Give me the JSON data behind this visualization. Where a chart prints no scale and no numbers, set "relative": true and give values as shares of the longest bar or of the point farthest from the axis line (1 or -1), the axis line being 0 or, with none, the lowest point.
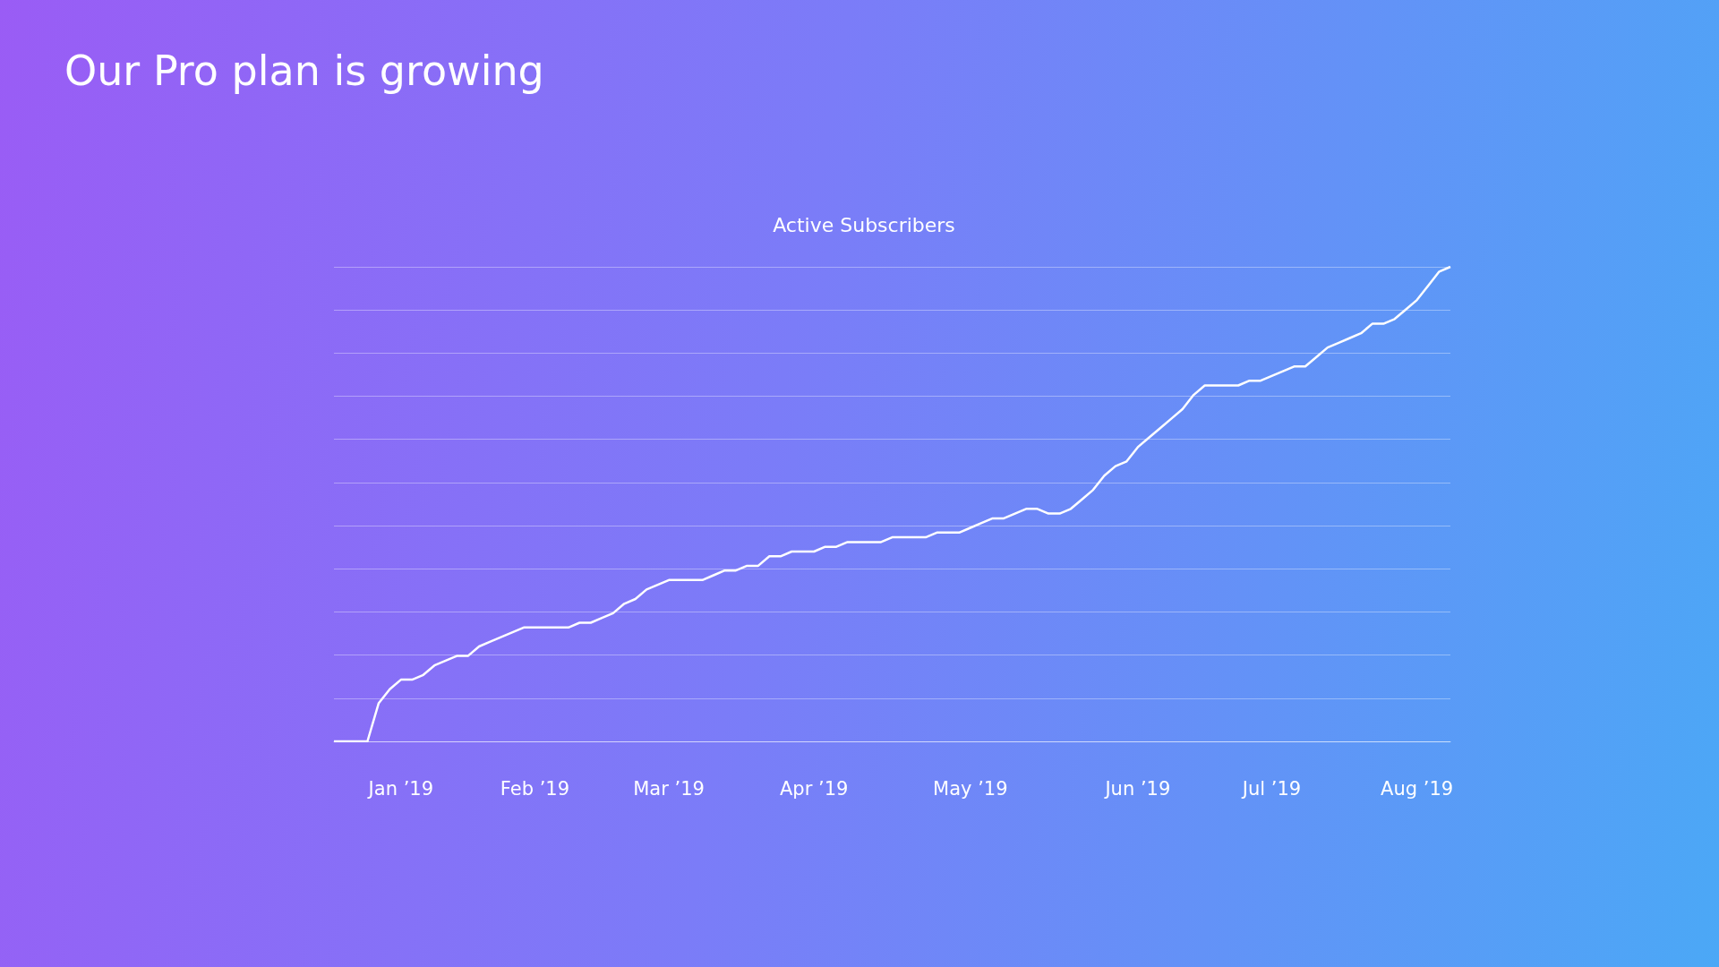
{
  "chart_data": {
    "type": "line",
    "title": "Our Pro plan is growing",
    "subtitle": "Active Subscribers",
    "relative": true,
    "grid": "y",
    "marker": "none",
    "line_style": "solid",
    "categories": [
      null,
      null,
      null,
      null,
      null,
      null,
      "Jan ’19",
      null,
      null,
      null,
      null,
      null,
      null,
      null,
      null,
      null,
      null,
      null,
      "Feb ’19",
      null,
      null,
      null,
      null,
      null,
      null,
      null,
      null,
      null,
      null,
      null,
      "Mar ’19",
      null,
      null,
      null,
      null,
      null,
      null,
      null,
      null,
      null,
      null,
      null,
      null,
      "Apr ’19",
      null,
      null,
      null,
      null,
      null,
      null,
      null,
      null,
      null,
      null,
      null,
      null,
      null,
      "May ’19",
      null,
      null,
      null,
      null,
      null,
      null,
      null,
      null,
      null,
      null,
      null,
      null,
      null,
      null,
      "Jun ’19",
      null,
      null,
      null,
      null,
      null,
      null,
      null,
      null,
      null,
      null,
      null,
      "Jul ’19",
      null,
      null,
      null,
      null,
      null,
      null,
      null,
      null,
      null,
      null,
      null,
      null,
      "Aug ’19",
      null,
      null,
      null
    ],
    "series": [
      {
        "color": "#ffffff",
        "values": [
          0,
          0,
          0,
          0,
          0.08,
          0.11,
          0.13,
          0.13,
          0.14,
          0.16,
          0.17,
          0.18,
          0.18,
          0.2,
          0.21,
          0.22,
          0.23,
          0.24,
          0.24,
          0.24,
          0.24,
          0.24,
          0.25,
          0.25,
          0.26,
          0.27,
          0.29,
          0.3,
          0.32,
          0.33,
          0.34,
          0.34,
          0.34,
          0.34,
          0.35,
          0.36,
          0.36,
          0.37,
          0.37,
          0.39,
          0.39,
          0.4,
          0.4,
          0.4,
          0.41,
          0.41,
          0.42,
          0.42,
          0.42,
          0.42,
          0.43,
          0.43,
          0.43,
          0.43,
          0.44,
          0.44,
          0.44,
          0.45,
          0.46,
          0.47,
          0.47,
          0.48,
          0.49,
          0.49,
          0.48,
          0.48,
          0.49,
          0.51,
          0.53,
          0.56,
          0.58,
          0.59,
          0.62,
          0.64,
          0.66,
          0.68,
          0.7,
          0.73,
          0.75,
          0.75,
          0.75,
          0.75,
          0.76,
          0.76,
          0.77,
          0.78,
          0.79,
          0.79,
          0.81,
          0.83,
          0.84,
          0.85,
          0.86,
          0.88,
          0.88,
          0.89,
          0.91,
          0.93,
          0.96,
          0.99,
          1
        ]
      }
    ]
  }
}
